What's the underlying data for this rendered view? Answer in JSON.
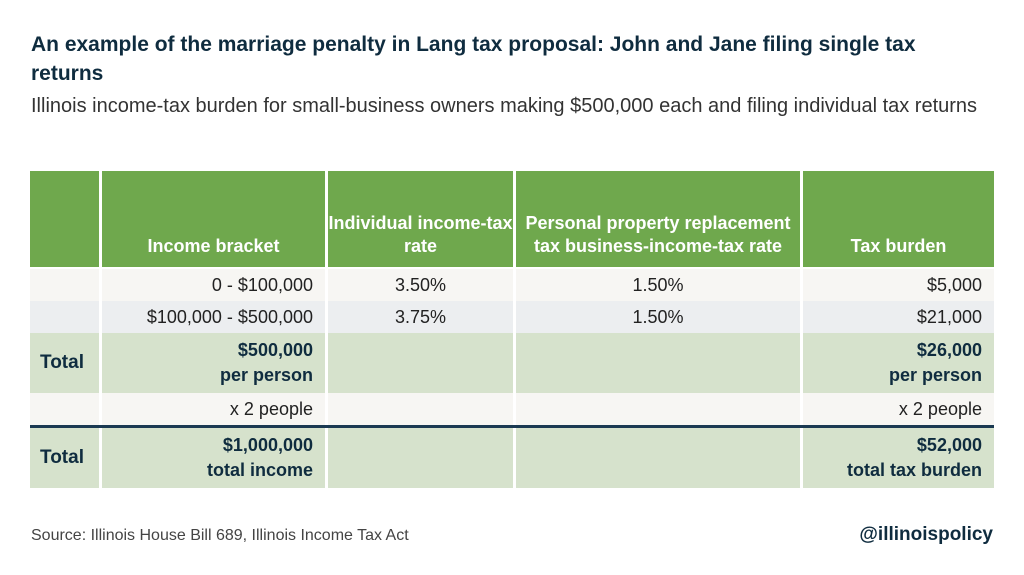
{
  "title": "An example of the marriage penalty in Lang tax proposal: John and Jane filing single tax returns",
  "subtitle": "Illinois income-tax burden for small-business owners making $500,000 each and filing individual tax returns",
  "headers": [
    "",
    "Income bracket",
    "Individual income-tax rate",
    "Personal property replacement tax business-income-tax rate",
    "Tax burden"
  ],
  "rows": [
    {
      "bracket": "0 - $100,000",
      "rate": "3.50%",
      "pprt": "1.50%",
      "burden": "$5,000"
    },
    {
      "bracket": "$100,000 - $500,000",
      "rate": "3.75%",
      "pprt": "1.50%",
      "burden": "$21,000"
    }
  ],
  "total1": {
    "label": "Total",
    "income_line1": "$500,000",
    "income_line2": "per person",
    "burden_line1": "$26,000",
    "burden_line2": "per person"
  },
  "multiplier": {
    "income": "x 2 people",
    "burden": "x 2 people"
  },
  "total2": {
    "label": "Total",
    "income_line1": "$1,000,000",
    "income_line2": "total income",
    "burden_line1": "$52,000",
    "burden_line2": "total tax burden"
  },
  "footer": {
    "source": "Source: Illinois House Bill 689, Illinois Income Tax Act",
    "handle": "@illinoispolicy"
  },
  "colors": {
    "header_green": "#6fa84d",
    "total_green": "#d6e2cc",
    "navy": "#0f2c3f"
  }
}
